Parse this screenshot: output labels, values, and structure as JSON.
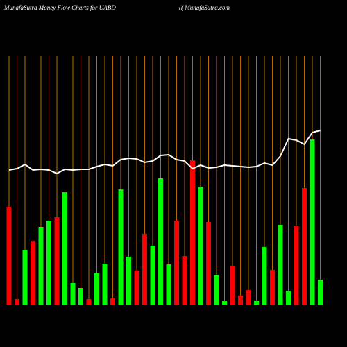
{
  "chart_data": {
    "type": "bar",
    "title": "MunafaSutra  Money Flow  Charts for UABD",
    "subtitle": "(( MunafaSutra.com",
    "ylim": [
      0,
      440
    ],
    "grid_color": "#b36b00",
    "series": [
      {
        "type": "bar",
        "colors": [
          "#ff0000",
          "#ff0000",
          "#00ff00",
          "#ff0000",
          "#00ff00",
          "#00ff00",
          "#ff0000",
          "#00ff00",
          "#00ff00",
          "#00ff00",
          "#ff0000",
          "#00ff00",
          "#00ff00",
          "#ff0000",
          "#00ff00",
          "#00ff00",
          "#ff0000",
          "#ff0000",
          "#00ff00",
          "#00ff00",
          "#00ff00",
          "#ff0000",
          "#ff0000",
          "#ff0000",
          "#00ff00",
          "#ff0000",
          "#00ff00",
          "#00ff00",
          "#ff0000",
          "#ff0000",
          "#ff0000",
          "#00ff00",
          "#00ff00",
          "#ff0000",
          "#00ff00",
          "#00ff00",
          "#ff0000",
          "#ff0000",
          "#00ff00",
          "#00ff00"
        ],
        "values": [
          142,
          9,
          80,
          93,
          113,
          122,
          127,
          163,
          32,
          25,
          9,
          46,
          60,
          10,
          167,
          70,
          50,
          103,
          86,
          183,
          59,
          122,
          71,
          209,
          171,
          120,
          44,
          7,
          57,
          14,
          22,
          7,
          84,
          51,
          116,
          21,
          115,
          169,
          239,
          37
        ]
      },
      {
        "type": "line",
        "color": "#ffffff",
        "values": [
          195,
          197,
          203,
          195,
          196,
          195,
          190,
          196,
          195,
          196,
          196,
          200,
          203,
          201,
          210,
          212,
          211,
          206,
          208,
          216,
          217,
          210,
          208,
          197,
          202,
          198,
          199,
          202,
          201,
          200,
          199,
          200,
          205,
          202,
          215,
          240,
          238,
          232,
          249,
          252
        ]
      }
    ],
    "categories": [
      null,
      null,
      null,
      null,
      null,
      null,
      null,
      null,
      null,
      null,
      null,
      null,
      null,
      null,
      null,
      null,
      null,
      null,
      null,
      null,
      null,
      null,
      null,
      null,
      null,
      null,
      null,
      null,
      null,
      null,
      null,
      null,
      null,
      null,
      null,
      null,
      null,
      null,
      null,
      null
    ]
  }
}
